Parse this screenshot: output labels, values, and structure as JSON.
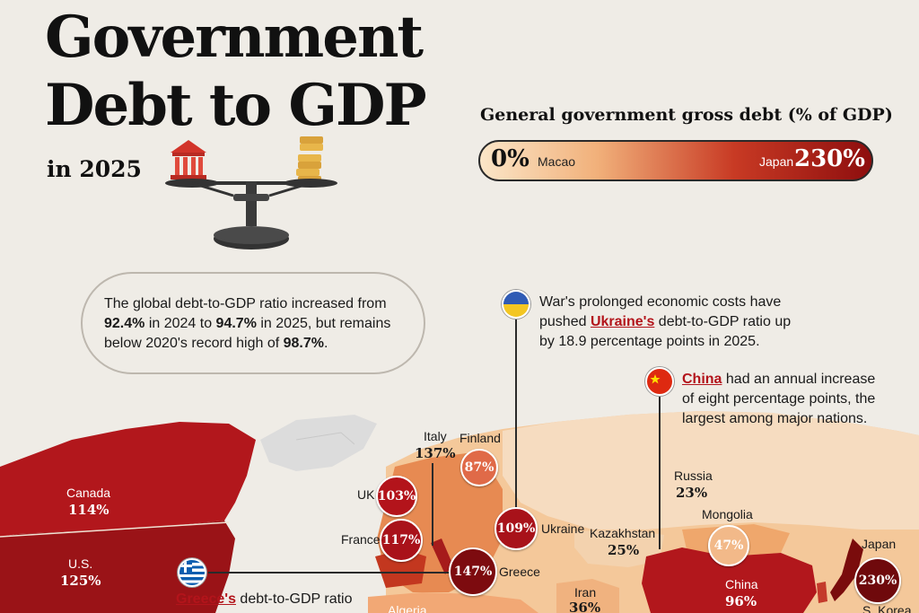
{
  "header": {
    "title_line1": "Government",
    "title_line2": "Debt to GDP",
    "subtitle": "in 2025"
  },
  "legend": {
    "title": "General government gross debt (% of GDP)",
    "min_value": "0%",
    "min_country": "Macao",
    "max_country": "Japan",
    "max_value": "230%",
    "gradient_colors": [
      "#fbe6c8",
      "#f1b07a",
      "#c83a24",
      "#8e0e0e"
    ]
  },
  "notes": {
    "global": {
      "part1": "The global debt-to-GDP ratio increased from ",
      "bold1": "92.4%",
      "part2": " in 2024 to ",
      "bold2": "94.7%",
      "part3": " in 2025, but remains below 2020's record high of ",
      "bold3": "98.7%",
      "part4": "."
    },
    "ukraine": {
      "part1": "War's prolonged economic costs have pushed ",
      "highlight": "Ukraine's",
      "part2": " debt-to-GDP ratio up by 18.9 percentage points in 2025."
    },
    "china": {
      "highlight": "China",
      "part1": " had an annual increase of eight percentage points, the largest among major nations."
    },
    "greece": {
      "highlight": "Greece's",
      "part1": " debt-to-GDP ratio"
    }
  },
  "map_labels": {
    "canada": {
      "name": "Canada",
      "value": "114%"
    },
    "us": {
      "name": "U.S.",
      "value": "125%"
    },
    "italy": {
      "name": "Italy",
      "value": "137%"
    },
    "finland": {
      "name": "Finland",
      "value": "87%"
    },
    "uk": {
      "name": "UK",
      "value": "103%"
    },
    "france": {
      "name": "France",
      "value": "117%"
    },
    "ukraine": {
      "name": "Ukraine",
      "value": "109%"
    },
    "greece": {
      "name": "Greece",
      "value": "147%"
    },
    "russia": {
      "name": "Russia",
      "value": "23%"
    },
    "mongolia": {
      "name": "Mongolia",
      "value": "47%"
    },
    "kazakhstan": {
      "name": "Kazakhstan",
      "value": "25%"
    },
    "china": {
      "name": "China",
      "value": "96%"
    },
    "iran": {
      "name": "Iran",
      "value": "36%"
    },
    "japan": {
      "name": "Japan",
      "value": "230%"
    },
    "skorea": {
      "name": "S. Korea"
    },
    "algeria": {
      "name": "Algeria"
    }
  },
  "icons": [
    "bank-icon",
    "coins-icon",
    "balance-scale-icon",
    "ukraine-flag-icon",
    "china-flag-icon",
    "greece-flag-icon"
  ]
}
